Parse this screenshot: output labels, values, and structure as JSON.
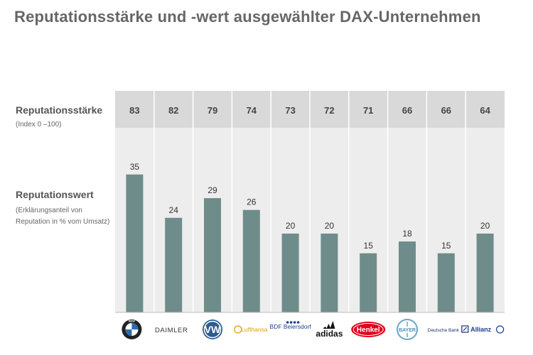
{
  "title": "Reputationsstärke und -wert ausgewählter DAX-Unternehmen",
  "rows": {
    "strength_label": "Reputationsstärke",
    "strength_sub": "(Index 0 –100)",
    "value_label": "Reputationswert",
    "value_sub": "(Erklärungsanteil von Reputation in % vom Umsatz)"
  },
  "colors": {
    "bar": "#6e8d8a",
    "header_band": "#d9d9d9",
    "panel": "#ededed",
    "title": "#666666"
  },
  "chart_data": {
    "type": "bar",
    "title": "Reputationsstärke und -wert ausgewählter DAX-Unternehmen",
    "categories": [
      "BMW",
      "DAIMLER",
      "VW",
      "Lufthansa",
      "BDF Beiersdorf",
      "adidas",
      "Henkel",
      "BAYER",
      "Deutsche Bank",
      "Allianz"
    ],
    "series": [
      {
        "name": "Reputationsstärke",
        "values": [
          83,
          82,
          79,
          74,
          73,
          72,
          71,
          66,
          66,
          64
        ]
      },
      {
        "name": "Reputationswert",
        "values": [
          35,
          24,
          29,
          26,
          20,
          20,
          15,
          18,
          15,
          20
        ]
      }
    ],
    "ylim": [
      0,
      45
    ],
    "xlabel": "",
    "ylabel": "",
    "grid": false
  },
  "logos": [
    {
      "name": "bmw-logo",
      "text": "BMW"
    },
    {
      "name": "daimler-logo",
      "text": "DAIMLER"
    },
    {
      "name": "vw-logo",
      "text": "VW"
    },
    {
      "name": "lufthansa-logo",
      "text": "Lufthansa"
    },
    {
      "name": "beiersdorf-logo",
      "text": "BDF Beiersdorf"
    },
    {
      "name": "adidas-logo",
      "text": "adidas"
    },
    {
      "name": "henkel-logo",
      "text": "Henkel"
    },
    {
      "name": "bayer-logo",
      "text": "BAYER"
    },
    {
      "name": "deutsche-bank-logo",
      "text": "Deutsche Bank"
    },
    {
      "name": "allianz-logo",
      "text": "Allianz"
    }
  ]
}
